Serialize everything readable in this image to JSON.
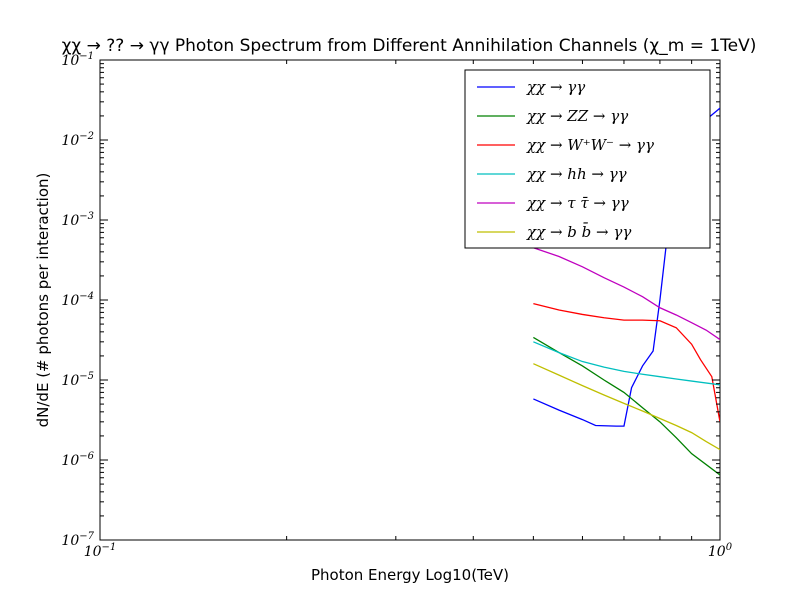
{
  "chart_data": {
    "type": "line",
    "title": "χχ → ?? → γγ Photon Spectrum from Different Annihilation Channels (χ_m = 1TeV)",
    "xlabel": "Photon Energy Log10(TeV)",
    "ylabel": "dN/dE (# photons per interaction)",
    "xscale": "log",
    "yscale": "log",
    "xlim": [
      0.1,
      1.0
    ],
    "ylim": [
      1e-07,
      0.1
    ],
    "x_ticks": [
      {
        "value": 0.1,
        "base": "10",
        "exp": "−1"
      },
      {
        "value": 1.0,
        "base": "10",
        "exp": "0"
      }
    ],
    "y_ticks": [
      {
        "value": 1e-07,
        "base": "10",
        "exp": "−7"
      },
      {
        "value": 1e-06,
        "base": "10",
        "exp": "−6"
      },
      {
        "value": 1e-05,
        "base": "10",
        "exp": "−5"
      },
      {
        "value": 0.0001,
        "base": "10",
        "exp": "−4"
      },
      {
        "value": 0.001,
        "base": "10",
        "exp": "−3"
      },
      {
        "value": 0.01,
        "base": "10",
        "exp": "−2"
      },
      {
        "value": 0.1,
        "base": "10",
        "exp": "−1"
      }
    ],
    "legend": "top-right",
    "series": [
      {
        "name": "χχ → γγ",
        "color": "#0000ff",
        "points": [
          [
            0.5,
            5.8e-06
          ],
          [
            0.55,
            4.2e-06
          ],
          [
            0.6,
            3.2e-06
          ],
          [
            0.63,
            2.7e-06
          ],
          [
            0.68,
            2.65e-06
          ],
          [
            0.7,
            2.65e-06
          ],
          [
            0.72,
            8e-06
          ],
          [
            0.75,
            1.5e-05
          ],
          [
            0.78,
            2.3e-05
          ],
          [
            0.8,
            0.0001
          ],
          [
            0.83,
            0.0012
          ],
          [
            0.86,
            0.005
          ],
          [
            0.9,
            0.013
          ],
          [
            0.95,
            0.018
          ],
          [
            1.0,
            0.025
          ]
        ]
      },
      {
        "name": "χχ → ZZ → γγ",
        "color": "#008000",
        "points": [
          [
            0.5,
            3.4e-05
          ],
          [
            0.55,
            2.2e-05
          ],
          [
            0.6,
            1.5e-05
          ],
          [
            0.65,
            1e-05
          ],
          [
            0.7,
            7e-06
          ],
          [
            0.75,
            4.5e-06
          ],
          [
            0.8,
            3e-06
          ],
          [
            0.85,
            1.9e-06
          ],
          [
            0.9,
            1.2e-06
          ],
          [
            1.0,
            6.5e-07
          ]
        ]
      },
      {
        "name": "χχ → W⁺W⁻ → γγ",
        "color": "#ff0000",
        "points": [
          [
            0.5,
            9e-05
          ],
          [
            0.55,
            7.5e-05
          ],
          [
            0.6,
            6.6e-05
          ],
          [
            0.65,
            6e-05
          ],
          [
            0.7,
            5.6e-05
          ],
          [
            0.75,
            5.6e-05
          ],
          [
            0.8,
            5.5e-05
          ],
          [
            0.85,
            4.5e-05
          ],
          [
            0.9,
            2.8e-05
          ],
          [
            0.93,
            1.8e-05
          ],
          [
            0.97,
            1.1e-05
          ],
          [
            1.0,
            3e-06
          ]
        ]
      },
      {
        "name": "χχ → hh → γγ",
        "color": "#00bfbf",
        "points": [
          [
            0.5,
            3e-05
          ],
          [
            0.55,
            2.2e-05
          ],
          [
            0.6,
            1.7e-05
          ],
          [
            0.65,
            1.45e-05
          ],
          [
            0.7,
            1.28e-05
          ],
          [
            0.75,
            1.18e-05
          ],
          [
            0.8,
            1.1e-05
          ],
          [
            0.85,
            1.03e-05
          ],
          [
            0.9,
            9.7e-06
          ],
          [
            1.0,
            8.7e-06
          ]
        ]
      },
      {
        "name": "χχ → τ τ̄ → γγ",
        "color": "#bf00bf",
        "points": [
          [
            0.5,
            0.00045
          ],
          [
            0.55,
            0.00035
          ],
          [
            0.6,
            0.00026
          ],
          [
            0.65,
            0.00019
          ],
          [
            0.7,
            0.000145
          ],
          [
            0.75,
            0.00011
          ],
          [
            0.8,
            8e-05
          ],
          [
            0.85,
            6.5e-05
          ],
          [
            0.9,
            5.2e-05
          ],
          [
            0.95,
            4.2e-05
          ],
          [
            1.0,
            3.2e-05
          ]
        ]
      },
      {
        "name": "χχ → b b̄ → γγ",
        "color": "#bfbf00",
        "points": [
          [
            0.5,
            1.6e-05
          ],
          [
            0.55,
            1.15e-05
          ],
          [
            0.6,
            8.5e-06
          ],
          [
            0.65,
            6.5e-06
          ],
          [
            0.7,
            5.1e-06
          ],
          [
            0.75,
            4.1e-06
          ],
          [
            0.8,
            3.3e-06
          ],
          [
            0.85,
            2.7e-06
          ],
          [
            0.9,
            2.2e-06
          ],
          [
            0.95,
            1.7e-06
          ],
          [
            1.0,
            1.35e-06
          ]
        ]
      }
    ]
  }
}
